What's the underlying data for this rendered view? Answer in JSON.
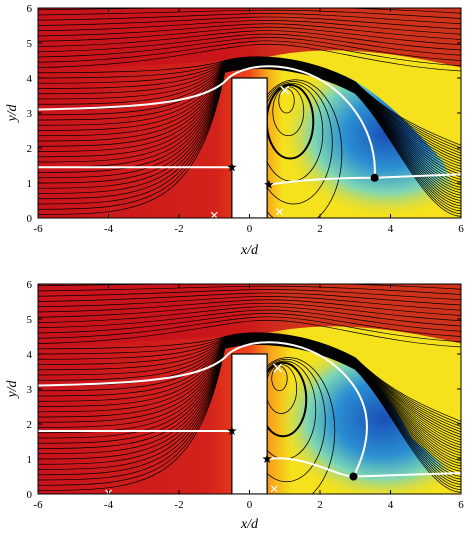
{
  "chart_data": [
    {
      "type": "contour",
      "panel": "top",
      "xlabel": "x/d",
      "ylabel": "y/d",
      "xlim": [
        -6,
        6
      ],
      "ylim": [
        0,
        6
      ],
      "xticks": [
        -6,
        -4,
        -2,
        0,
        2,
        4,
        6
      ],
      "yticks": [
        0,
        1,
        2,
        3,
        4,
        5,
        6
      ],
      "colormap": [
        "#c8131b",
        "#f2421a",
        "#f7a21c",
        "#f5e11c",
        "#a5e26b",
        "#37c3d6",
        "#1a62c4"
      ],
      "obstacle": {
        "x": [
          -0.5,
          0.5
        ],
        "y": [
          0,
          4
        ]
      },
      "recirculation_core": {
        "x": 1.0,
        "y": 3.65,
        "symbol": "x"
      },
      "markers": [
        {
          "symbol": "star",
          "x": -0.5,
          "y": 1.45
        },
        {
          "symbol": "star",
          "x": 0.55,
          "y": 0.95
        },
        {
          "symbol": "dot",
          "x": 3.55,
          "y": 1.15
        },
        {
          "symbol": "x",
          "x": -1.0,
          "y": 0.08
        },
        {
          "symbol": "x",
          "x": 0.85,
          "y": 0.18
        }
      ]
    },
    {
      "type": "contour",
      "panel": "bottom",
      "xlabel": "x/d",
      "ylabel": "y/d",
      "xlim": [
        -6,
        6
      ],
      "ylim": [
        0,
        6
      ],
      "xticks": [
        -6,
        -4,
        -2,
        0,
        2,
        4,
        6
      ],
      "yticks": [
        0,
        1,
        2,
        3,
        4,
        5,
        6
      ],
      "colormap": [
        "#c8131b",
        "#f2421a",
        "#f7a21c",
        "#f5e11c",
        "#a5e26b",
        "#37c3d6",
        "#1a62c4"
      ],
      "obstacle": {
        "x": [
          -0.5,
          0.5
        ],
        "y": [
          0,
          4
        ]
      },
      "recirculation_core": {
        "x": 0.8,
        "y": 3.6,
        "symbol": "x"
      },
      "markers": [
        {
          "symbol": "star",
          "x": -0.5,
          "y": 1.8
        },
        {
          "symbol": "star",
          "x": 0.5,
          "y": 1.0
        },
        {
          "symbol": "dot",
          "x": 2.95,
          "y": 0.5
        },
        {
          "symbol": "x",
          "x": -4.0,
          "y": 0.03
        },
        {
          "symbol": "x",
          "x": 0.7,
          "y": 0.15
        }
      ]
    }
  ]
}
